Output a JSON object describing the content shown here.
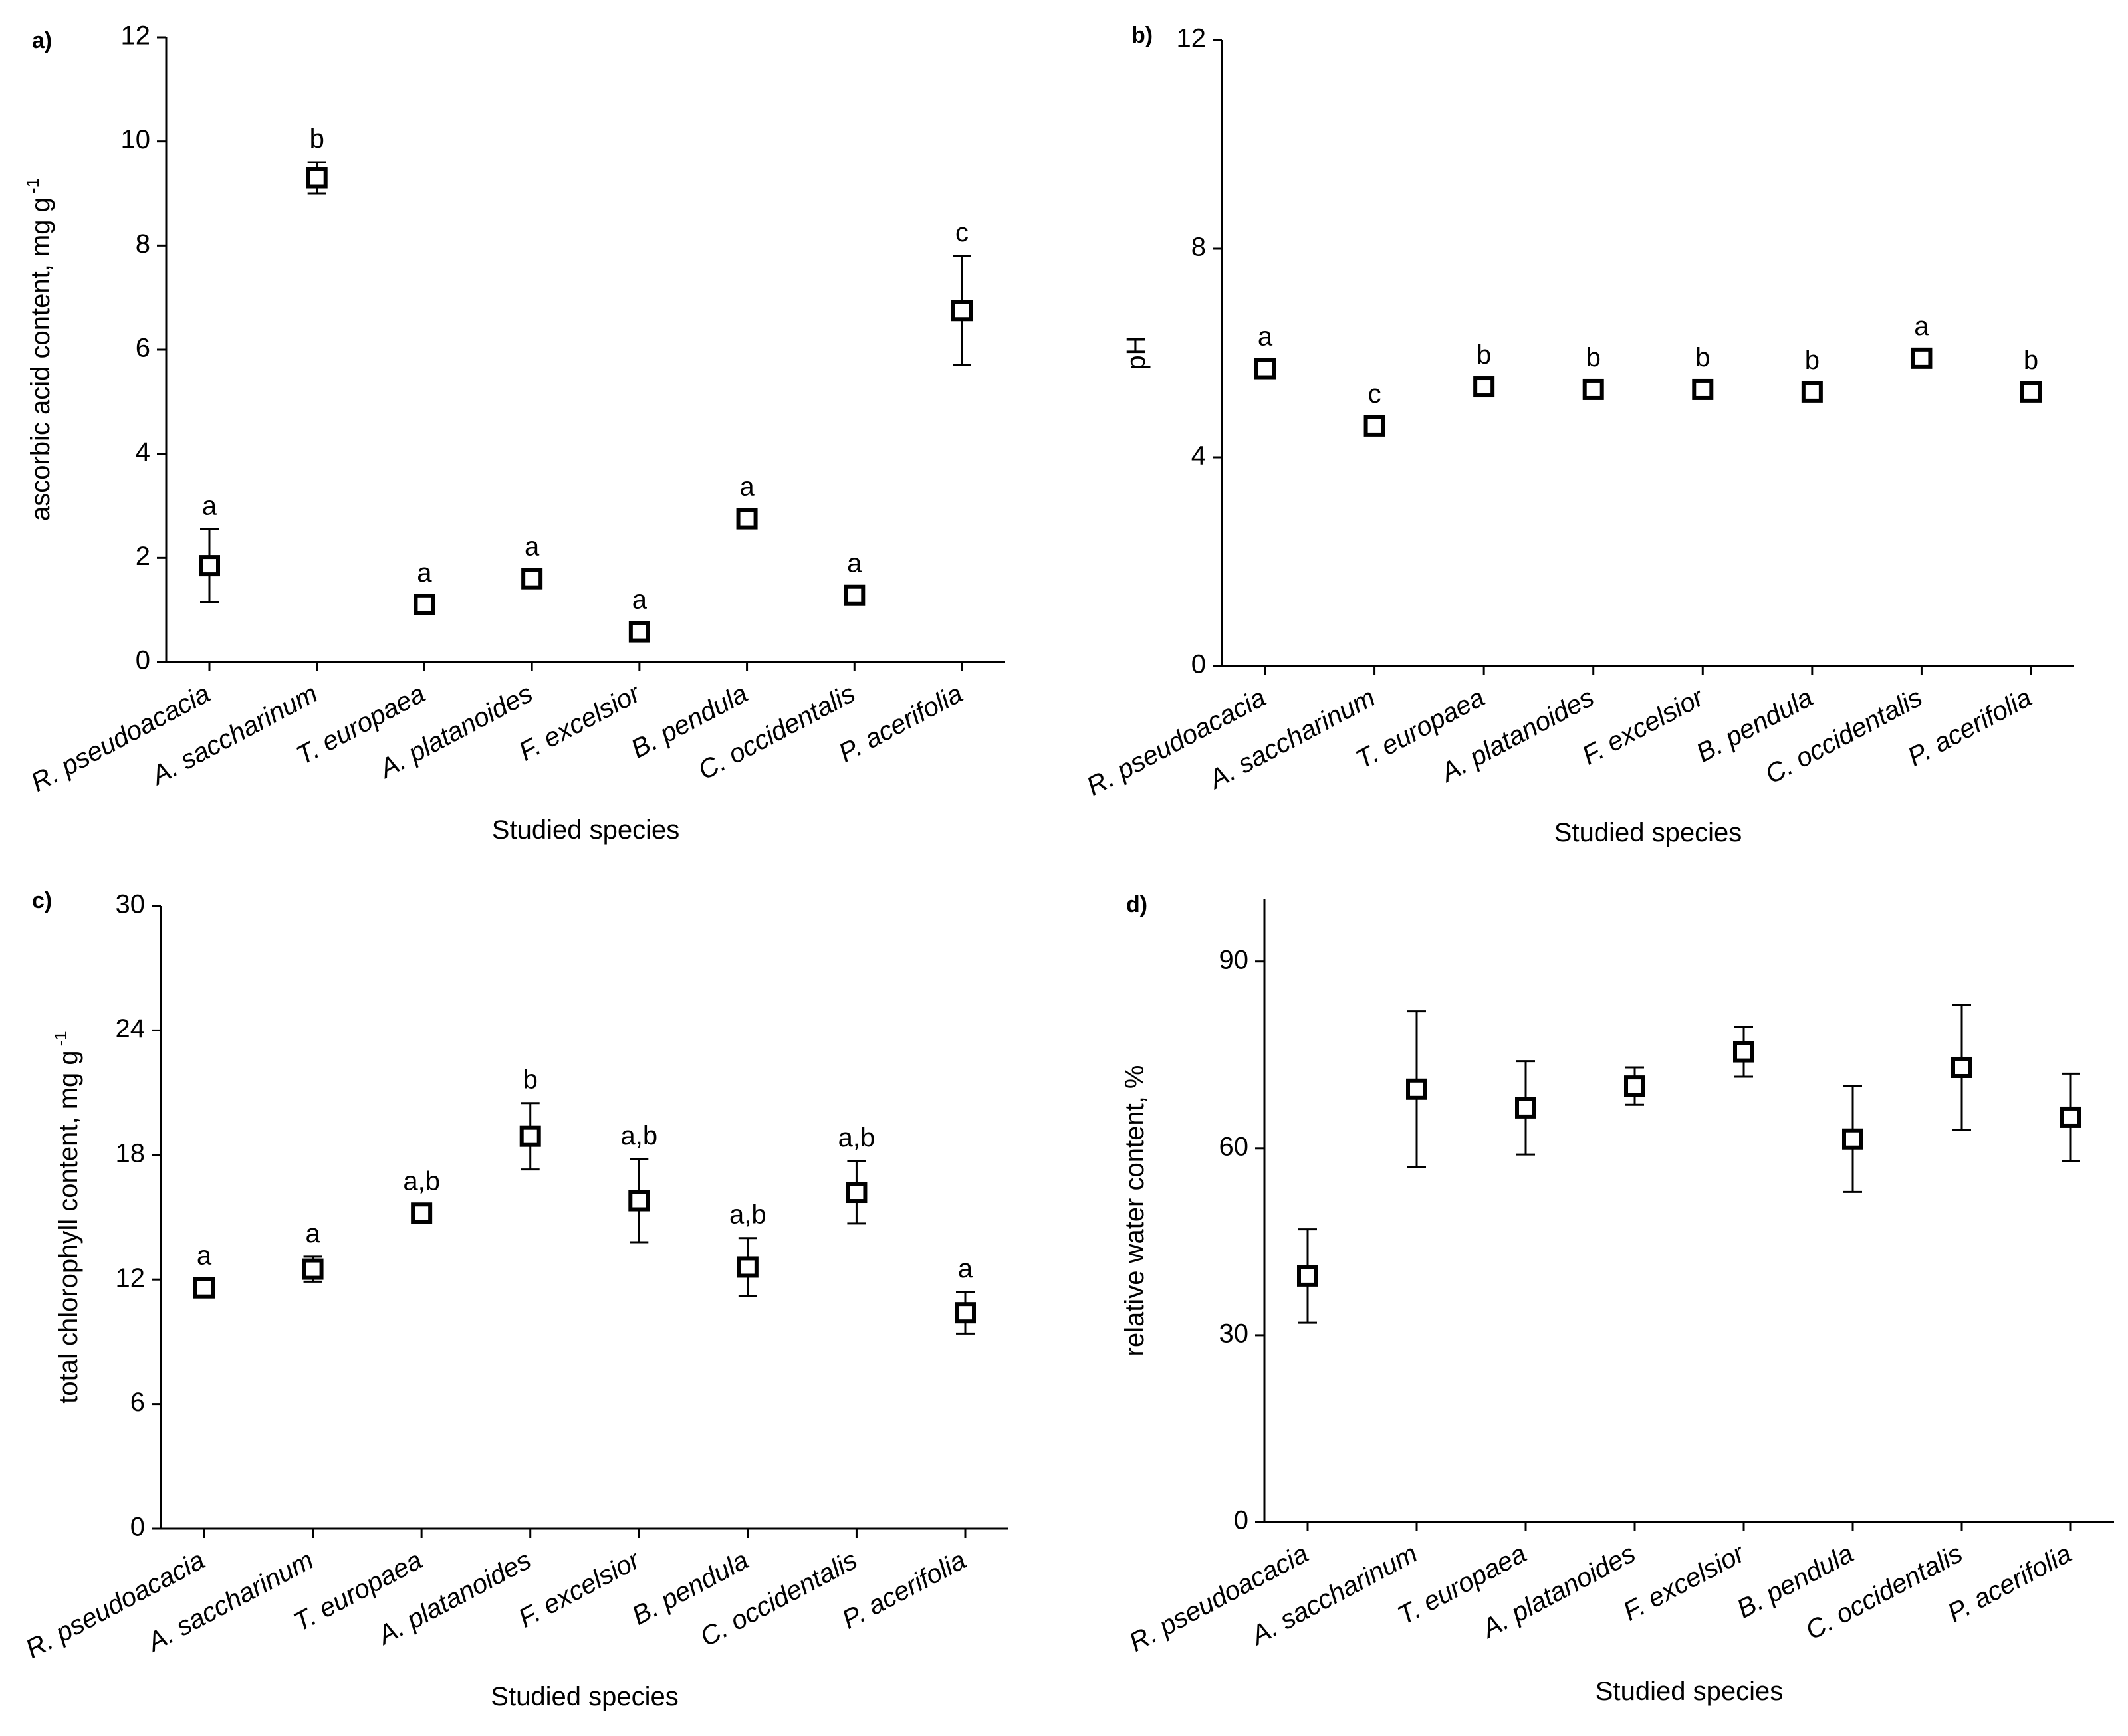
{
  "chart_data": [
    {
      "type": "scatter",
      "panel_label": "a)",
      "categories": [
        "R. pseudoacacia",
        "A. saccharinum",
        "T. europaea",
        "A. platanoides",
        "F. excelsior",
        "B. pendula",
        "C. occidentalis",
        "P. acerifolia"
      ],
      "values": [
        1.85,
        9.3,
        1.1,
        1.6,
        0.58,
        2.75,
        1.28,
        6.75
      ],
      "errors": [
        0.7,
        0.3,
        0.1,
        0.1,
        0.15,
        0.1,
        0.1,
        1.05
      ],
      "group_letters": [
        "a",
        "b",
        "a",
        "a",
        "a",
        "a",
        "a",
        "c"
      ],
      "xlabel": "Studied species",
      "ylabel": "ascorbic acid content, mg g",
      "ylabel_superscript": "-1",
      "ylim": [
        0,
        12
      ],
      "yticks": [
        0,
        2,
        4,
        6,
        8,
        10,
        12
      ],
      "grid": false
    },
    {
      "type": "scatter",
      "panel_label": "b)",
      "categories": [
        "R. pseudoacacia",
        "A. saccharinum",
        "T. europaea",
        "A. platanoides",
        "F. excelsior",
        "B. pendula",
        "C. occidentalis",
        "P. acerifolia"
      ],
      "values": [
        5.7,
        4.6,
        5.35,
        5.3,
        5.3,
        5.25,
        5.9,
        5.25
      ],
      "errors": [
        0.1,
        0.1,
        0.1,
        0.1,
        0.1,
        0.1,
        0.1,
        0.1
      ],
      "group_letters": [
        "a",
        "c",
        "b",
        "b",
        "b",
        "b",
        "a",
        "b"
      ],
      "xlabel": "Studied species",
      "ylabel": "pH",
      "ylim": [
        0,
        12
      ],
      "yticks": [
        0,
        4,
        8,
        12
      ],
      "grid": false
    },
    {
      "type": "scatter",
      "panel_label": "c)",
      "categories": [
        "R. pseudoacacia",
        "A. saccharinum",
        "T. europaea",
        "A. platanoides",
        "F. excelsior",
        "B. pendula",
        "C. occidentalis",
        "P. acerifolia"
      ],
      "values": [
        11.6,
        12.5,
        15.2,
        18.9,
        15.8,
        12.6,
        16.2,
        10.4
      ],
      "errors": [
        0.3,
        0.6,
        0.4,
        1.6,
        2.0,
        1.4,
        1.5,
        1.0
      ],
      "group_letters": [
        "a",
        "a",
        "a,b",
        "b",
        "a,b",
        "a,b",
        "a,b",
        "a"
      ],
      "xlabel": "Studied species",
      "ylabel": "total chlorophyll content, mg g",
      "ylabel_superscript": "-1",
      "ylim": [
        0,
        30
      ],
      "yticks": [
        0,
        6,
        12,
        18,
        24,
        30
      ],
      "grid": false
    },
    {
      "type": "scatter",
      "panel_label": "d)",
      "categories": [
        "R. pseudoacacia",
        "A. saccharinum",
        "T. europaea",
        "A. platanoides",
        "F. excelsior",
        "B. pendula",
        "C. occidentalis",
        "P. acerifolia"
      ],
      "values": [
        39.5,
        69.5,
        66.5,
        70.0,
        75.5,
        61.5,
        73.0,
        65.0
      ],
      "errors": [
        7.5,
        12.5,
        7.5,
        3.0,
        4.0,
        8.5,
        10.0,
        7.0
      ],
      "group_letters": [],
      "xlabel": "Studied species",
      "ylabel": "relative water content, %",
      "ylim": [
        0,
        100
      ],
      "yticks": [
        0,
        30,
        60,
        90
      ],
      "grid": false
    }
  ]
}
